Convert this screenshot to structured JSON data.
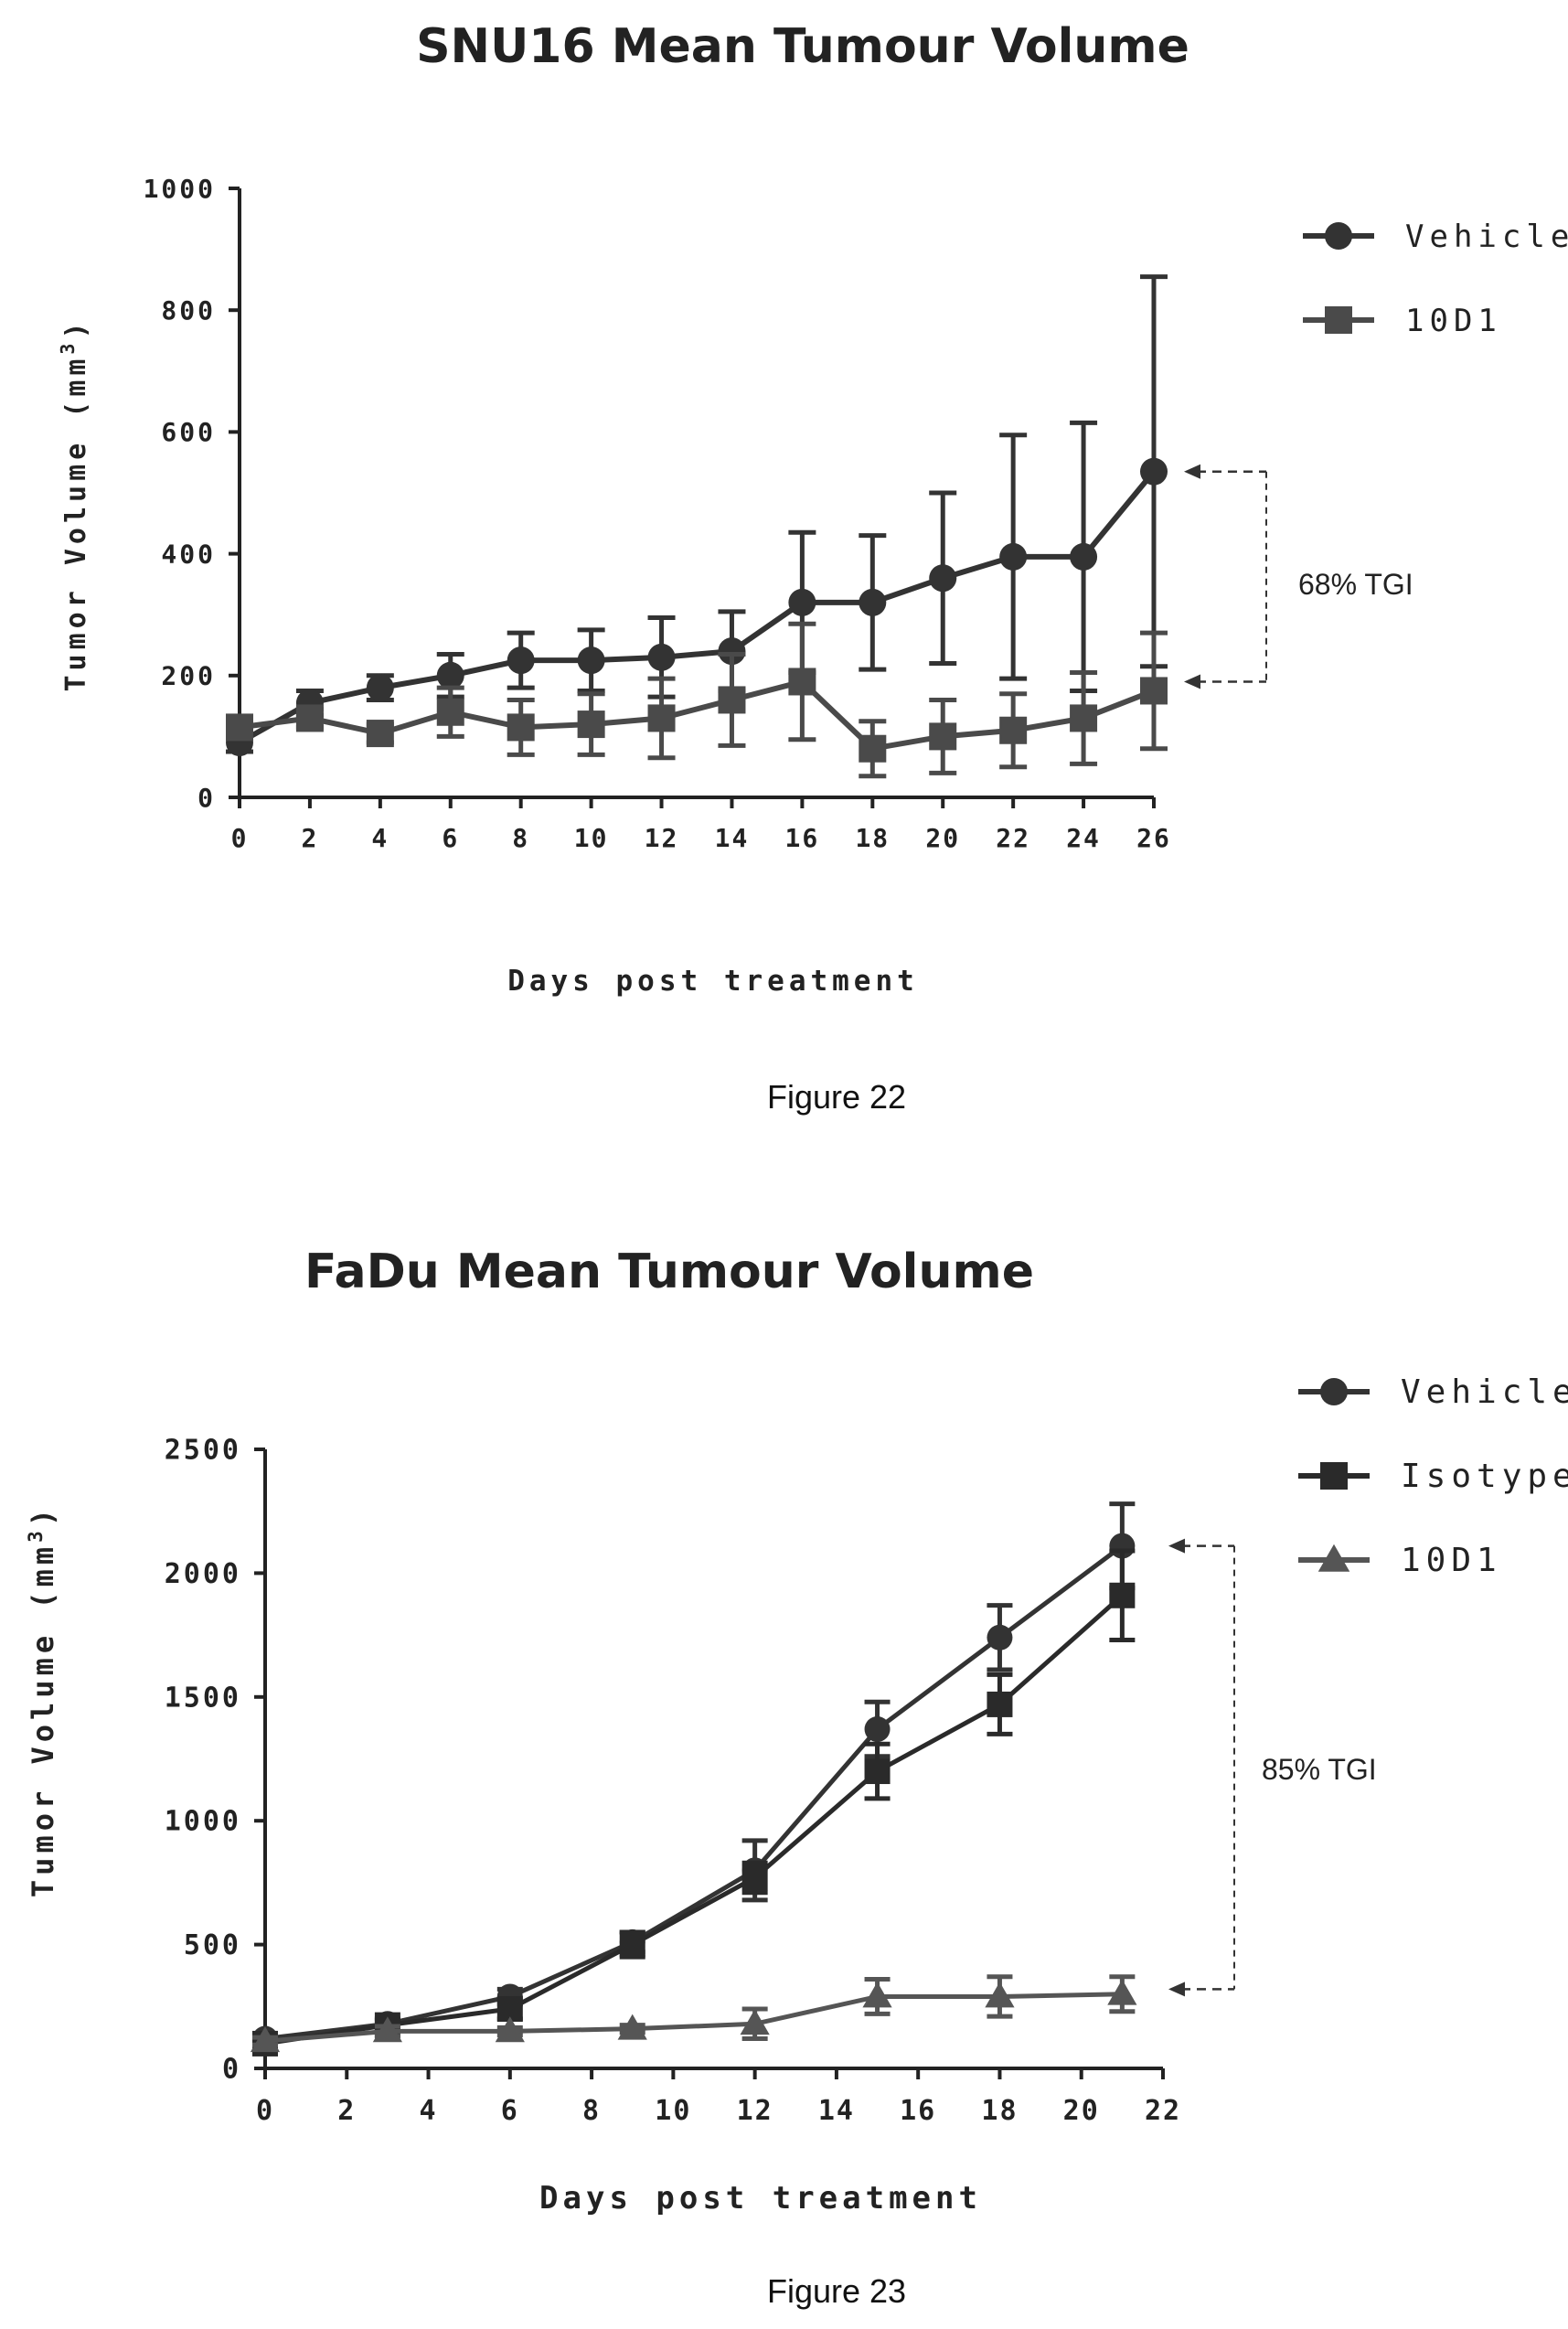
{
  "figures": [
    {
      "caption": "Figure 22"
    },
    {
      "caption": "Figure 23"
    }
  ],
  "chart_data": [
    {
      "type": "line",
      "title": "SNU16 Mean Tumour Volume",
      "xlabel": "Days post treatment",
      "ylabel": "Tumor Volume (mm",
      "ylabel_sup": "3",
      "ylabel_close": ")",
      "xlim": [
        0,
        26
      ],
      "ylim": [
        0,
        1000
      ],
      "xticks": [
        0,
        2,
        4,
        6,
        8,
        10,
        12,
        14,
        16,
        18,
        20,
        22,
        24,
        26
      ],
      "yticks": [
        0,
        200,
        400,
        600,
        800,
        1000
      ],
      "grid": false,
      "legend_position": "right",
      "annotation": "68% TGI",
      "annotation_y": [
        535,
        190
      ],
      "series": [
        {
          "name": "Vehicle",
          "marker": "circle",
          "color": "#333333",
          "x": [
            0,
            2,
            4,
            6,
            8,
            10,
            12,
            14,
            16,
            18,
            20,
            22,
            24,
            26
          ],
          "y": [
            90,
            155,
            180,
            200,
            225,
            225,
            230,
            240,
            320,
            320,
            360,
            395,
            395,
            535
          ],
          "err": [
            15,
            20,
            20,
            35,
            45,
            50,
            65,
            65,
            115,
            110,
            140,
            200,
            220,
            320
          ]
        },
        {
          "name": "10D1",
          "marker": "square",
          "color": "#4a4a4a",
          "x": [
            0,
            2,
            4,
            6,
            8,
            10,
            12,
            14,
            16,
            18,
            20,
            22,
            24,
            26
          ],
          "y": [
            115,
            130,
            105,
            140,
            115,
            120,
            130,
            160,
            190,
            80,
            100,
            110,
            130,
            175
          ],
          "err": [
            10,
            15,
            15,
            40,
            45,
            50,
            65,
            75,
            95,
            45,
            60,
            60,
            75,
            95
          ]
        }
      ]
    },
    {
      "type": "line",
      "title": "FaDu Mean Tumour Volume",
      "xlabel": "Days post treatment",
      "ylabel": "Tumor Volume (mm",
      "ylabel_sup": "3",
      "ylabel_close": ")",
      "xlim": [
        0,
        22
      ],
      "ylim": [
        0,
        2500
      ],
      "xticks": [
        0,
        2,
        4,
        6,
        8,
        10,
        12,
        14,
        16,
        18,
        20,
        22
      ],
      "yticks": [
        0,
        500,
        1000,
        1500,
        2000,
        2500
      ],
      "grid": false,
      "legend_position": "right",
      "annotation": "85% TGI",
      "annotation_y": [
        2110,
        320
      ],
      "series": [
        {
          "name": "Vehicle",
          "marker": "circle",
          "color": "#333333",
          "x": [
            0,
            3,
            6,
            9,
            12,
            15,
            18,
            21
          ],
          "y": [
            120,
            180,
            290,
            510,
            800,
            1370,
            1740,
            2110
          ],
          "err": [
            20,
            20,
            30,
            40,
            120,
            110,
            130,
            170
          ]
        },
        {
          "name": "Isotype",
          "marker": "square",
          "color": "#2a2a2a",
          "x": [
            0,
            3,
            6,
            9,
            12,
            15,
            18,
            21
          ],
          "y": [
            100,
            175,
            240,
            500,
            770,
            1200,
            1470,
            1910
          ],
          "err": [
            20,
            20,
            40,
            50,
            60,
            110,
            120,
            180
          ]
        },
        {
          "name": "10D1",
          "marker": "triangle",
          "color": "#555555",
          "x": [
            0,
            3,
            6,
            9,
            12,
            15,
            18,
            21
          ],
          "y": [
            110,
            150,
            150,
            160,
            180,
            290,
            290,
            300
          ],
          "err": [
            15,
            20,
            15,
            15,
            60,
            70,
            80,
            70
          ]
        }
      ]
    }
  ]
}
